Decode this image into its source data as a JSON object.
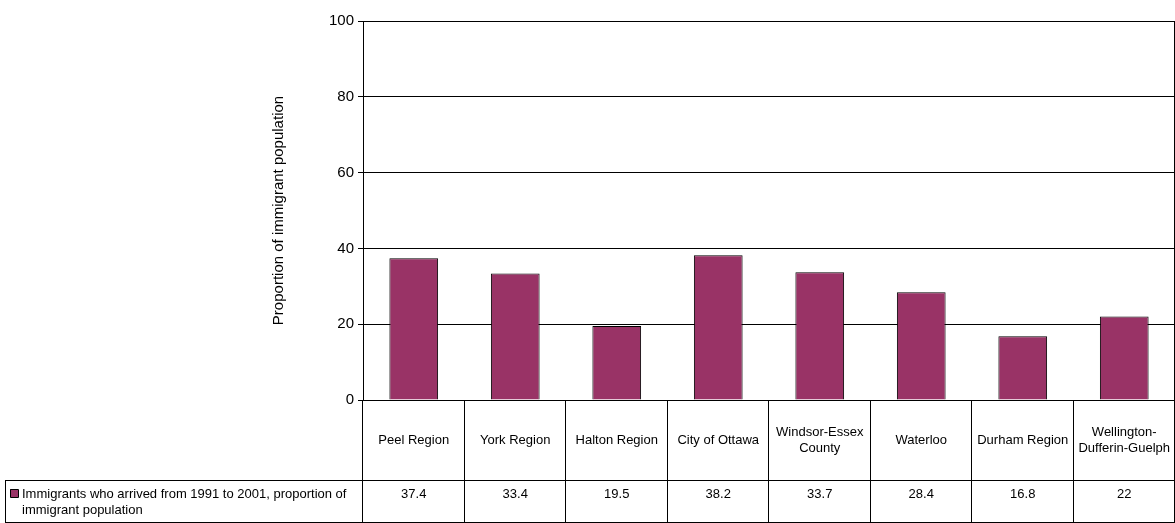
{
  "chart_data": {
    "type": "bar",
    "ylabel": "Proportion of immigrant population",
    "categories": [
      "Peel Region",
      "York Region",
      "Halton Region",
      "City of Ottawa",
      "Windsor-Essex County",
      "Waterloo",
      "Durham Region",
      "Wellington-Dufferin-Guelph"
    ],
    "series": [
      {
        "name": "Immigrants who arrived from 1991 to 2001, proportion of immigrant population",
        "color": "#993366",
        "values": [
          37.4,
          33.4,
          19.5,
          38.2,
          33.7,
          28.4,
          16.8,
          22
        ]
      }
    ],
    "ylim": [
      0,
      100
    ],
    "yticks": [
      0,
      20,
      40,
      60,
      80,
      100
    ],
    "grid": "y",
    "legend": "bottom left",
    "data_labels": true
  }
}
